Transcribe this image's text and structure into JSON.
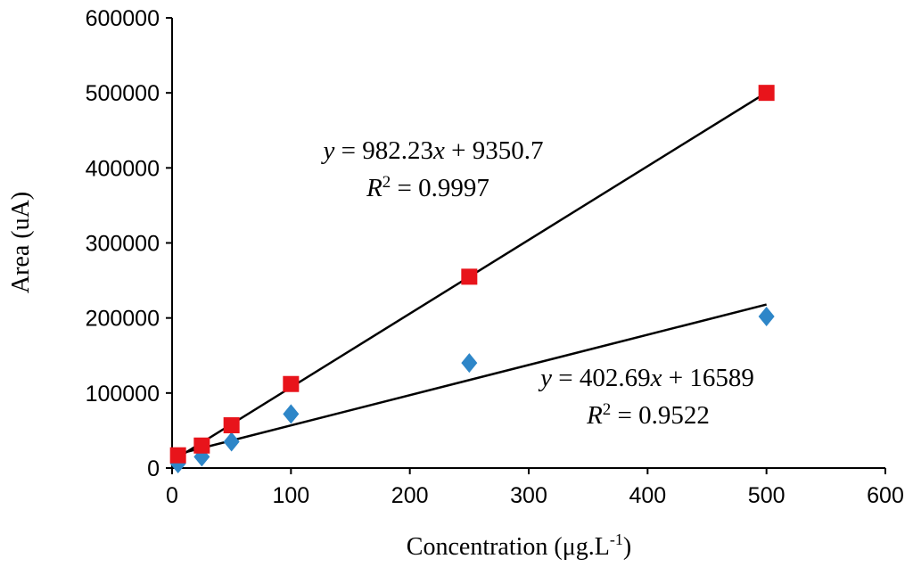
{
  "chart_data": {
    "type": "scatter",
    "title": "",
    "xlabel": "Concentration (μg.L",
    "xlabel_sup": "-1",
    "xlabel_end": ")",
    "ylabel": "Area (uA)",
    "xlim": [
      0,
      600
    ],
    "ylim": [
      0,
      600000
    ],
    "xticks": [
      0,
      100,
      200,
      300,
      400,
      500,
      600
    ],
    "yticks": [
      0,
      100000,
      200000,
      300000,
      400000,
      500000,
      600000
    ],
    "xtick_labels": [
      "0",
      "100",
      "200",
      "300",
      "400",
      "500",
      "600"
    ],
    "ytick_labels": [
      "0",
      "100000",
      "200000",
      "300000",
      "400000",
      "500000",
      "600000"
    ],
    "grid": false,
    "legend": "none",
    "series": [
      {
        "name": "red-squares",
        "marker": "square",
        "color": "#E8141B",
        "x": [
          5,
          25,
          50,
          100,
          250,
          500
        ],
        "y": [
          17000,
          30000,
          57000,
          112000,
          255000,
          500000
        ],
        "trendline": {
          "slope": 982.23,
          "intercept": 9350.7,
          "x_range": [
            5,
            500
          ]
        },
        "equation": {
          "y_var": "y",
          "eq_mid": " = 982.23",
          "x_var": "x",
          "eq_end": " + 9350.7",
          "r_var": "R",
          "r_sup": "2",
          "r_val": " = 0.9997"
        }
      },
      {
        "name": "blue-diamonds",
        "marker": "diamond",
        "color": "#2E86C8",
        "x": [
          5,
          25,
          50,
          100,
          250,
          500
        ],
        "y": [
          6000,
          15000,
          35000,
          72000,
          140000,
          202000
        ],
        "trendline": {
          "slope": 402.69,
          "intercept": 16589,
          "x_range": [
            5,
            500
          ]
        },
        "equation": {
          "y_var": "y",
          "eq_mid": " = 402.69",
          "x_var": "x",
          "eq_end": " + 16589",
          "r_var": "R",
          "r_sup": "2",
          "r_val": " = 0.9522"
        }
      }
    ]
  }
}
